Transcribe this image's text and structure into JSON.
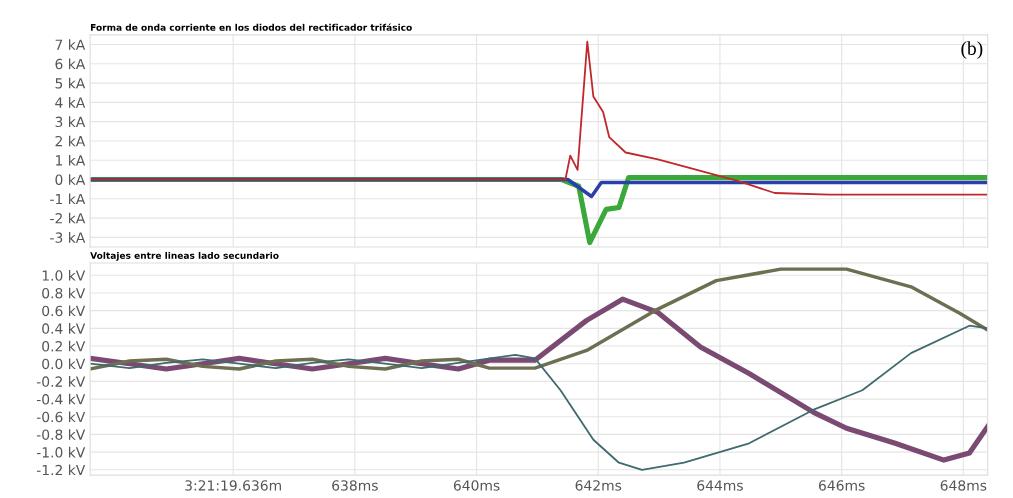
{
  "chart_data": [
    {
      "type": "line",
      "title": "Forma de onda corriente en los diodos del rectificador trifásico",
      "annotations": [
        "(b)"
      ],
      "xlim": [
        633.65,
        648.4
      ],
      "xticks": [
        636,
        638,
        640,
        642,
        644,
        646,
        648
      ],
      "ylim": [
        -3.5,
        7.5
      ],
      "yticks": [
        {
          "value": -3,
          "label": "-3 kA"
        },
        {
          "value": -2,
          "label": "-2 kA"
        },
        {
          "value": -1,
          "label": "-1 kA"
        },
        {
          "value": 0,
          "label": "0 kA"
        },
        {
          "value": 1,
          "label": "1 kA"
        },
        {
          "value": 2,
          "label": "2 kA"
        },
        {
          "value": 3,
          "label": "3 kA"
        },
        {
          "value": 4,
          "label": "4 kA"
        },
        {
          "value": 5,
          "label": "5 kA"
        },
        {
          "value": 6,
          "label": "6 kA"
        },
        {
          "value": 7,
          "label": "7 kA"
        }
      ],
      "tick_labels": "y",
      "grid": true,
      "series": [
        {
          "color": "#3aa83a",
          "x": [
            633.65,
            641.4,
            641.68,
            641.86,
            642.13,
            642.34,
            642.5,
            648.4
          ],
          "values": [
            0,
            0,
            -0.35,
            -3.27,
            -1.55,
            -1.45,
            0.1,
            0.1
          ]
        },
        {
          "color": "#2b3fa8",
          "x": [
            633.65,
            641.5,
            641.89,
            642.05,
            648.4
          ],
          "values": [
            0,
            0,
            -0.88,
            -0.15,
            -0.15
          ]
        },
        {
          "color": "#c0282d",
          "x": [
            633.65,
            641.46,
            641.54,
            641.66,
            641.82,
            641.92,
            642.08,
            642.18,
            642.45,
            642.98,
            644.32,
            644.9,
            645.8,
            648.4
          ],
          "values": [
            0,
            0,
            1.24,
            0.5,
            7.15,
            4.3,
            3.5,
            2.2,
            1.4,
            1.04,
            -0.1,
            -0.7,
            -0.78,
            -0.78
          ]
        }
      ]
    },
    {
      "type": "line",
      "title": "Voltajes entre lineas lado secundario",
      "xlim": [
        633.65,
        648.4
      ],
      "xticks": [
        {
          "value": 636,
          "label": "3:21:19.636m"
        },
        {
          "value": 638,
          "label": "638ms"
        },
        {
          "value": 640,
          "label": "640ms"
        },
        {
          "value": 642,
          "label": "642ms"
        },
        {
          "value": 644,
          "label": "644ms"
        },
        {
          "value": 646,
          "label": "646ms"
        },
        {
          "value": 648,
          "label": "648ms"
        }
      ],
      "ylim": [
        -1.26,
        1.14
      ],
      "yticks": [
        {
          "value": -1.2,
          "label": "-1.2 kV"
        },
        {
          "value": -1.0,
          "label": "-1.0 kV"
        },
        {
          "value": -0.8,
          "label": "-0.8 kV"
        },
        {
          "value": -0.6,
          "label": "-0.6 kV"
        },
        {
          "value": -0.4,
          "label": "-0.4 kV"
        },
        {
          "value": -0.2,
          "label": "-0.2 kV"
        },
        {
          "value": 0.0,
          "label": "0.0 kV"
        },
        {
          "value": 0.2,
          "label": "0.2 kV"
        },
        {
          "value": 0.4,
          "label": "0.4 kV"
        },
        {
          "value": 0.6,
          "label": "0.6 kV"
        },
        {
          "value": 0.8,
          "label": "0.8 kV"
        },
        {
          "value": 1.0,
          "label": "1.0 kV"
        }
      ],
      "grid": true,
      "series": [
        {
          "color": "#7a4a72",
          "x": [
            633.65,
            634.3,
            634.9,
            635.5,
            636.1,
            636.7,
            637.3,
            637.9,
            638.5,
            639.1,
            639.7,
            640.21,
            640.96,
            641.81,
            642.4,
            642.98,
            643.68,
            644.48,
            645.54,
            646.08,
            646.88,
            647.68,
            648.1,
            648.4
          ],
          "values": [
            0.06,
            0.0,
            -0.06,
            0.0,
            0.06,
            0.0,
            -0.06,
            0.0,
            0.06,
            0.0,
            -0.06,
            0.04,
            0.04,
            0.49,
            0.73,
            0.58,
            0.19,
            -0.11,
            -0.55,
            -0.73,
            -0.9,
            -1.09,
            -1.01,
            -0.71
          ]
        },
        {
          "color": "#6e6e52",
          "x": [
            633.65,
            634.3,
            634.9,
            635.5,
            636.1,
            636.7,
            637.3,
            637.9,
            638.5,
            639.1,
            639.7,
            640.21,
            640.96,
            641.81,
            642.93,
            643.94,
            645.0,
            646.08,
            647.14,
            647.94,
            648.4
          ],
          "values": [
            -0.06,
            0.03,
            0.05,
            -0.03,
            -0.06,
            0.03,
            0.05,
            -0.03,
            -0.06,
            0.03,
            0.05,
            -0.05,
            -0.05,
            0.15,
            0.6,
            0.94,
            1.07,
            1.07,
            0.87,
            0.57,
            0.38
          ]
        },
        {
          "color": "#3f6a6e",
          "x": [
            633.65,
            634.3,
            634.9,
            635.5,
            636.1,
            636.7,
            637.3,
            637.9,
            638.5,
            639.1,
            639.7,
            640.64,
            640.96,
            641.38,
            641.92,
            642.34,
            642.72,
            643.41,
            644.48,
            645.54,
            646.34,
            647.14,
            648.1,
            648.4
          ],
          "values": [
            0.0,
            -0.05,
            0.01,
            0.05,
            0.0,
            -0.05,
            0.01,
            0.05,
            0.0,
            -0.05,
            0.01,
            0.1,
            0.06,
            -0.3,
            -0.86,
            -1.12,
            -1.2,
            -1.12,
            -0.9,
            -0.52,
            -0.3,
            0.12,
            0.43,
            0.4
          ]
        }
      ]
    }
  ]
}
